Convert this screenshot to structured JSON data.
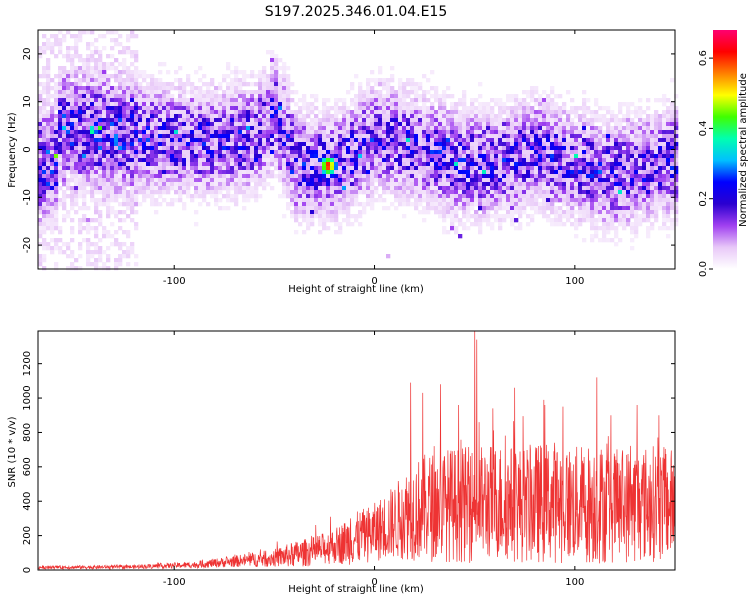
{
  "title": "S197.2025.346.01.04.E15",
  "chart_data": [
    {
      "type": "heatmap",
      "title": "S197.2025.346.01.04.E15",
      "xlabel": "Height of straight line (km)",
      "ylabel": "Frequency (Hz)",
      "xlim": [
        -168,
        150
      ],
      "ylim": [
        -25,
        25
      ],
      "xticks": [
        -100,
        0,
        100
      ],
      "yticks": [
        -20,
        -10,
        0,
        10,
        20
      ],
      "xtick_labels": [
        "-100",
        "0",
        "100"
      ],
      "ytick_labels": [
        "-20",
        "-10",
        "0",
        "10",
        "20"
      ],
      "colorbar": {
        "label": "Normalized spectral amplitude",
        "range": [
          0.0,
          0.68
        ],
        "ticks": [
          0.0,
          0.2,
          0.4,
          0.6
        ],
        "tick_labels": [
          "0.0",
          "0.2",
          "0.4",
          "0.6"
        ],
        "colormap": [
          "#ffffff",
          "#e8c8f8",
          "#a040f0",
          "#2a00d0",
          "#0000ff",
          "#00c0ff",
          "#00ffb0",
          "#40ff00",
          "#ffff00",
          "#ff8000",
          "#ff0000",
          "#ff0070"
        ]
      },
      "band_center_hz": [
        [
          -160,
          5
        ],
        [
          -120,
          3
        ],
        [
          -90,
          2
        ],
        [
          -60,
          3
        ],
        [
          -50,
          8
        ],
        [
          -40,
          -3
        ],
        [
          -20,
          -3
        ],
        [
          0,
          3
        ],
        [
          20,
          1
        ],
        [
          40,
          -2
        ],
        [
          60,
          -3
        ],
        [
          80,
          0
        ],
        [
          100,
          -3
        ],
        [
          120,
          -5
        ],
        [
          150,
          -2
        ]
      ],
      "peak": {
        "x": -24,
        "y": -3,
        "value": 0.68
      },
      "grid": false
    },
    {
      "type": "line",
      "xlabel": "Height of straight line (km)",
      "ylabel": "SNR (10 * v/v)",
      "xlim": [
        -168,
        150
      ],
      "ylim": [
        0,
        1390
      ],
      "xticks": [
        -100,
        0,
        100
      ],
      "yticks": [
        0,
        200,
        400,
        600,
        800,
        1000,
        1200
      ],
      "xtick_labels": [
        "-100",
        "0",
        "100"
      ],
      "ytick_labels": [
        "0",
        "200",
        "400",
        "600",
        "800",
        "1000",
        "1200"
      ],
      "color": "#ee3333",
      "envelope": {
        "x": [
          -168,
          -120,
          -90,
          -70,
          -50,
          -40,
          -30,
          -20,
          -10,
          0,
          10,
          18,
          25,
          35,
          50,
          60,
          75,
          90,
          100,
          110,
          120,
          130,
          140,
          150
        ],
        "mean": [
          15,
          18,
          30,
          50,
          70,
          90,
          110,
          140,
          180,
          220,
          280,
          340,
          360,
          380,
          380,
          400,
          380,
          400,
          380,
          390,
          370,
          380,
          390,
          380
        ],
        "spread": [
          10,
          12,
          20,
          35,
          55,
          80,
          90,
          110,
          160,
          180,
          230,
          300,
          330,
          350,
          360,
          360,
          360,
          380,
          360,
          380,
          350,
          360,
          360,
          340
        ]
      },
      "spikes": [
        {
          "x": -22,
          "y": 310
        },
        {
          "x": -12,
          "y": 300
        },
        {
          "x": -6,
          "y": 330
        },
        {
          "x": 18,
          "y": 1090
        },
        {
          "x": 24,
          "y": 1030
        },
        {
          "x": 33,
          "y": 1080
        },
        {
          "x": 50,
          "y": 1390
        },
        {
          "x": 51,
          "y": 1340
        },
        {
          "x": 42,
          "y": 960
        },
        {
          "x": 59,
          "y": 940
        },
        {
          "x": 70,
          "y": 1060
        },
        {
          "x": 85,
          "y": 960
        },
        {
          "x": 94,
          "y": 950
        },
        {
          "x": 111,
          "y": 1120
        },
        {
          "x": 118,
          "y": 900
        },
        {
          "x": 131,
          "y": 960
        },
        {
          "x": 142,
          "y": 900
        }
      ],
      "grid": false
    }
  ]
}
